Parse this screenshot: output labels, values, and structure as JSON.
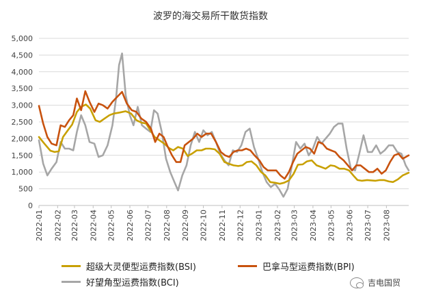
{
  "chart_data": {
    "type": "line",
    "title": "波罗的海交易所干散货指数",
    "xlabel": "",
    "ylabel": "",
    "ylim": [
      0,
      5000
    ],
    "yticks": [
      "0",
      "500",
      "1,000",
      "1,500",
      "2,000",
      "2,500",
      "3,000",
      "3,500",
      "4,000",
      "4,500",
      "5,000"
    ],
    "x_range": [
      "2022-01-01",
      "2023-09-07"
    ],
    "x_tick_labels": [
      "2022-01",
      "2022-02",
      "2022-03",
      "2022-04",
      "2022-05",
      "2022-06",
      "2022-07",
      "2022-08",
      "2022-09",
      "2022-10",
      "2022-11",
      "2022-12",
      "2023-01",
      "2023-02",
      "2023-03",
      "2023-04",
      "2023-05",
      "2023-06",
      "2023-07",
      "2023-08"
    ],
    "legend_position": "bottom",
    "grid": "horizontal",
    "series": [
      {
        "name": "超级大灵便型运费指数(BSI)",
        "color": "#c8a000",
        "points": [
          [
            "2022-01-01",
            2050
          ],
          [
            "2022-01-10",
            1850
          ],
          [
            "2022-01-20",
            1640
          ],
          [
            "2022-01-27",
            1600
          ],
          [
            "2022-02-03",
            1620
          ],
          [
            "2022-02-10",
            2050
          ],
          [
            "2022-02-18",
            2250
          ],
          [
            "2022-02-25",
            2420
          ],
          [
            "2022-03-05",
            2800
          ],
          [
            "2022-03-12",
            2950
          ],
          [
            "2022-03-20",
            3020
          ],
          [
            "2022-03-27",
            2900
          ],
          [
            "2022-04-05",
            2550
          ],
          [
            "2022-04-12",
            2500
          ],
          [
            "2022-04-20",
            2600
          ],
          [
            "2022-04-28",
            2700
          ],
          [
            "2022-05-05",
            2750
          ],
          [
            "2022-05-15",
            2780
          ],
          [
            "2022-05-25",
            2820
          ],
          [
            "2022-06-03",
            2750
          ],
          [
            "2022-06-12",
            2550
          ],
          [
            "2022-06-20",
            2480
          ],
          [
            "2022-06-28",
            2450
          ],
          [
            "2022-07-05",
            2250
          ],
          [
            "2022-07-12",
            2050
          ],
          [
            "2022-07-20",
            1950
          ],
          [
            "2022-07-28",
            1850
          ],
          [
            "2022-08-05",
            1720
          ],
          [
            "2022-08-12",
            1650
          ],
          [
            "2022-08-20",
            1750
          ],
          [
            "2022-08-28",
            1700
          ],
          [
            "2022-09-05",
            1480
          ],
          [
            "2022-09-12",
            1550
          ],
          [
            "2022-09-20",
            1650
          ],
          [
            "2022-09-28",
            1650
          ],
          [
            "2022-10-05",
            1700
          ],
          [
            "2022-10-12",
            1700
          ],
          [
            "2022-10-20",
            1680
          ],
          [
            "2022-10-28",
            1550
          ],
          [
            "2022-11-05",
            1300
          ],
          [
            "2022-11-12",
            1250
          ],
          [
            "2022-11-20",
            1200
          ],
          [
            "2022-11-28",
            1180
          ],
          [
            "2022-12-05",
            1200
          ],
          [
            "2022-12-12",
            1300
          ],
          [
            "2022-12-20",
            1320
          ],
          [
            "2022-12-28",
            1200
          ],
          [
            "2023-01-05",
            1000
          ],
          [
            "2023-01-12",
            900
          ],
          [
            "2023-01-20",
            700
          ],
          [
            "2023-01-28",
            680
          ],
          [
            "2023-02-05",
            650
          ],
          [
            "2023-02-12",
            680
          ],
          [
            "2023-02-20",
            750
          ],
          [
            "2023-02-28",
            950
          ],
          [
            "2023-03-07",
            1220
          ],
          [
            "2023-03-15",
            1230
          ],
          [
            "2023-03-22",
            1320
          ],
          [
            "2023-03-30",
            1350
          ],
          [
            "2023-04-07",
            1200
          ],
          [
            "2023-04-15",
            1150
          ],
          [
            "2023-04-22",
            1100
          ],
          [
            "2023-04-30",
            1200
          ],
          [
            "2023-05-07",
            1180
          ],
          [
            "2023-05-15",
            1100
          ],
          [
            "2023-05-23",
            1100
          ],
          [
            "2023-05-31",
            1050
          ],
          [
            "2023-06-07",
            900
          ],
          [
            "2023-06-14",
            760
          ],
          [
            "2023-06-21",
            740
          ],
          [
            "2023-06-30",
            760
          ],
          [
            "2023-07-07",
            750
          ],
          [
            "2023-07-14",
            740
          ],
          [
            "2023-07-21",
            760
          ],
          [
            "2023-07-28",
            760
          ],
          [
            "2023-08-05",
            720
          ],
          [
            "2023-08-12",
            700
          ],
          [
            "2023-08-20",
            780
          ],
          [
            "2023-08-28",
            900
          ],
          [
            "2023-09-07",
            980
          ]
        ]
      },
      {
        "name": "巴拿马型运费指数(BPI)",
        "color": "#c8520e",
        "points": [
          [
            "2022-01-01",
            2980
          ],
          [
            "2022-01-08",
            2450
          ],
          [
            "2022-01-15",
            2050
          ],
          [
            "2022-01-22",
            1850
          ],
          [
            "2022-01-30",
            1800
          ],
          [
            "2022-02-06",
            2400
          ],
          [
            "2022-02-13",
            2350
          ],
          [
            "2022-02-20",
            2550
          ],
          [
            "2022-02-27",
            2700
          ],
          [
            "2022-03-05",
            3200
          ],
          [
            "2022-03-12",
            2850
          ],
          [
            "2022-03-19",
            3420
          ],
          [
            "2022-03-26",
            3100
          ],
          [
            "2022-04-03",
            2800
          ],
          [
            "2022-04-10",
            3050
          ],
          [
            "2022-04-17",
            3000
          ],
          [
            "2022-04-25",
            2900
          ],
          [
            "2022-05-03",
            3100
          ],
          [
            "2022-05-11",
            3250
          ],
          [
            "2022-05-19",
            3400
          ],
          [
            "2022-05-27",
            3050
          ],
          [
            "2022-06-04",
            2850
          ],
          [
            "2022-06-12",
            2800
          ],
          [
            "2022-06-20",
            2600
          ],
          [
            "2022-06-28",
            2500
          ],
          [
            "2022-07-06",
            2300
          ],
          [
            "2022-07-13",
            1900
          ],
          [
            "2022-07-20",
            2150
          ],
          [
            "2022-07-27",
            2050
          ],
          [
            "2022-08-03",
            1750
          ],
          [
            "2022-08-10",
            1500
          ],
          [
            "2022-08-17",
            1300
          ],
          [
            "2022-08-24",
            1300
          ],
          [
            "2022-08-31",
            1800
          ],
          [
            "2022-09-07",
            1900
          ],
          [
            "2022-09-14",
            2000
          ],
          [
            "2022-09-21",
            2150
          ],
          [
            "2022-09-28",
            2050
          ],
          [
            "2022-10-06",
            2150
          ],
          [
            "2022-10-14",
            2150
          ],
          [
            "2022-10-22",
            1900
          ],
          [
            "2022-10-30",
            1600
          ],
          [
            "2022-11-06",
            1500
          ],
          [
            "2022-11-13",
            1450
          ],
          [
            "2022-11-20",
            1600
          ],
          [
            "2022-11-27",
            1650
          ],
          [
            "2022-12-04",
            1650
          ],
          [
            "2022-12-11",
            1700
          ],
          [
            "2022-12-18",
            1650
          ],
          [
            "2022-12-25",
            1500
          ],
          [
            "2023-01-02",
            1350
          ],
          [
            "2023-01-09",
            1150
          ],
          [
            "2023-01-16",
            1050
          ],
          [
            "2023-01-23",
            1050
          ],
          [
            "2023-01-30",
            1050
          ],
          [
            "2023-02-06",
            900
          ],
          [
            "2023-02-13",
            800
          ],
          [
            "2023-02-20",
            1000
          ],
          [
            "2023-02-27",
            1300
          ],
          [
            "2023-03-06",
            1550
          ],
          [
            "2023-03-13",
            1650
          ],
          [
            "2023-03-20",
            1750
          ],
          [
            "2023-03-27",
            1700
          ],
          [
            "2023-04-03",
            1550
          ],
          [
            "2023-04-10",
            1900
          ],
          [
            "2023-04-17",
            1850
          ],
          [
            "2023-04-24",
            1700
          ],
          [
            "2023-05-01",
            1650
          ],
          [
            "2023-05-08",
            1600
          ],
          [
            "2023-05-15",
            1450
          ],
          [
            "2023-05-22",
            1350
          ],
          [
            "2023-05-29",
            1200
          ],
          [
            "2023-06-05",
            1050
          ],
          [
            "2023-06-12",
            1200
          ],
          [
            "2023-06-19",
            1200
          ],
          [
            "2023-06-26",
            1100
          ],
          [
            "2023-07-03",
            1000
          ],
          [
            "2023-07-10",
            1000
          ],
          [
            "2023-07-17",
            1100
          ],
          [
            "2023-07-24",
            950
          ],
          [
            "2023-07-31",
            1050
          ],
          [
            "2023-08-07",
            1300
          ],
          [
            "2023-08-14",
            1500
          ],
          [
            "2023-08-21",
            1550
          ],
          [
            "2023-08-28",
            1400
          ],
          [
            "2023-09-07",
            1500
          ]
        ]
      },
      {
        "name": "好望角型运费指数(BCI)",
        "color": "#a6a6a6",
        "points": [
          [
            "2022-01-01",
            1950
          ],
          [
            "2022-01-08",
            1250
          ],
          [
            "2022-01-15",
            900
          ],
          [
            "2022-01-22",
            1100
          ],
          [
            "2022-01-30",
            1300
          ],
          [
            "2022-02-06",
            1900
          ],
          [
            "2022-02-13",
            1700
          ],
          [
            "2022-02-20",
            1700
          ],
          [
            "2022-02-27",
            1650
          ],
          [
            "2022-03-05",
            2200
          ],
          [
            "2022-03-12",
            2700
          ],
          [
            "2022-03-19",
            2400
          ],
          [
            "2022-03-26",
            1900
          ],
          [
            "2022-04-03",
            1850
          ],
          [
            "2022-04-10",
            1450
          ],
          [
            "2022-04-17",
            1500
          ],
          [
            "2022-04-25",
            1800
          ],
          [
            "2022-05-03",
            2400
          ],
          [
            "2022-05-09",
            3200
          ],
          [
            "2022-05-14",
            4200
          ],
          [
            "2022-05-19",
            4550
          ],
          [
            "2022-05-25",
            3300
          ],
          [
            "2022-06-01",
            2700
          ],
          [
            "2022-06-07",
            2400
          ],
          [
            "2022-06-14",
            2950
          ],
          [
            "2022-06-21",
            2400
          ],
          [
            "2022-06-28",
            2300
          ],
          [
            "2022-07-05",
            2200
          ],
          [
            "2022-07-11",
            2850
          ],
          [
            "2022-07-17",
            2750
          ],
          [
            "2022-07-24",
            2200
          ],
          [
            "2022-07-31",
            1400
          ],
          [
            "2022-08-07",
            1000
          ],
          [
            "2022-08-14",
            700
          ],
          [
            "2022-08-20",
            450
          ],
          [
            "2022-08-27",
            900
          ],
          [
            "2022-09-03",
            1200
          ],
          [
            "2022-09-10",
            1800
          ],
          [
            "2022-09-17",
            2200
          ],
          [
            "2022-09-24",
            1900
          ],
          [
            "2022-10-01",
            2250
          ],
          [
            "2022-10-08",
            2100
          ],
          [
            "2022-10-15",
            2200
          ],
          [
            "2022-10-22",
            1900
          ],
          [
            "2022-10-29",
            1550
          ],
          [
            "2022-11-05",
            1350
          ],
          [
            "2022-11-12",
            1200
          ],
          [
            "2022-11-19",
            1650
          ],
          [
            "2022-11-26",
            1600
          ],
          [
            "2022-12-03",
            1800
          ],
          [
            "2022-12-10",
            2200
          ],
          [
            "2022-12-17",
            2300
          ],
          [
            "2022-12-24",
            1750
          ],
          [
            "2022-12-31",
            1400
          ],
          [
            "2023-01-07",
            1000
          ],
          [
            "2023-01-14",
            700
          ],
          [
            "2023-01-21",
            550
          ],
          [
            "2023-01-28",
            650
          ],
          [
            "2023-02-04",
            480
          ],
          [
            "2023-02-11",
            260
          ],
          [
            "2023-02-18",
            500
          ],
          [
            "2023-02-25",
            1200
          ],
          [
            "2023-03-04",
            1900
          ],
          [
            "2023-03-11",
            1700
          ],
          [
            "2023-03-18",
            1850
          ],
          [
            "2023-03-25",
            1500
          ],
          [
            "2023-04-01",
            1700
          ],
          [
            "2023-04-08",
            2050
          ],
          [
            "2023-04-15",
            1850
          ],
          [
            "2023-04-22",
            2000
          ],
          [
            "2023-04-29",
            2150
          ],
          [
            "2023-05-06",
            2350
          ],
          [
            "2023-05-13",
            2450
          ],
          [
            "2023-05-20",
            2450
          ],
          [
            "2023-05-27",
            1700
          ],
          [
            "2023-06-03",
            1100
          ],
          [
            "2023-06-10",
            1050
          ],
          [
            "2023-06-17",
            1550
          ],
          [
            "2023-06-24",
            2100
          ],
          [
            "2023-07-01",
            1600
          ],
          [
            "2023-07-08",
            1600
          ],
          [
            "2023-07-15",
            1800
          ],
          [
            "2023-07-22",
            1550
          ],
          [
            "2023-07-29",
            1650
          ],
          [
            "2023-08-05",
            1800
          ],
          [
            "2023-08-12",
            1800
          ],
          [
            "2023-08-19",
            1600
          ],
          [
            "2023-08-26",
            1550
          ],
          [
            "2023-09-02",
            1200
          ],
          [
            "2023-09-07",
            1050
          ]
        ]
      }
    ]
  },
  "watermark": {
    "icon": "wechat-icon",
    "text": "吉电国贸"
  }
}
